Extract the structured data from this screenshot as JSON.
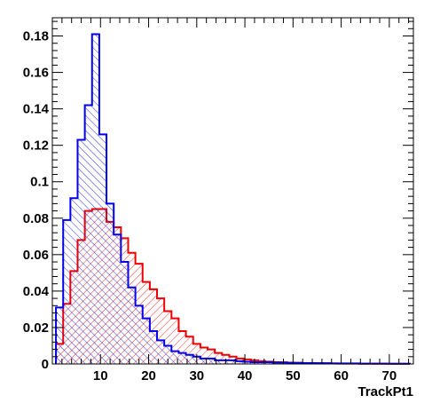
{
  "chart_data": {
    "type": "histogram",
    "title": "",
    "xlabel": "TrackPt1",
    "ylabel": "",
    "xlim": [
      0,
      75
    ],
    "ylim": [
      0,
      0.19
    ],
    "bin_width": 1.5,
    "x_start": 0.75,
    "x_ticks": [
      10,
      20,
      30,
      40,
      50,
      60,
      70
    ],
    "x_tick_labels": [
      "10",
      "20",
      "30",
      "40",
      "50",
      "60",
      "70"
    ],
    "y_ticks": [
      0,
      0.02,
      0.04,
      0.06,
      0.08,
      0.1,
      0.12,
      0.14,
      0.16,
      0.18
    ],
    "y_tick_labels": [
      "0",
      "0.02",
      "0.04",
      "0.06",
      "0.08",
      "0.1",
      "0.12",
      "0.14",
      "0.16",
      "0.18"
    ],
    "grid": false,
    "legend": "none",
    "series": [
      {
        "color": "#0000ee",
        "fill": "hatched",
        "values": [
          0.031,
          0.079,
          0.091,
          0.123,
          0.142,
          0.181,
          0.126,
          0.088,
          0.071,
          0.056,
          0.042,
          0.032,
          0.025,
          0.018,
          0.013,
          0.01,
          0.007,
          0.006,
          0.005,
          0.004,
          0.003,
          0.003,
          0.002,
          0.002,
          0.002,
          0.0015,
          0.0012,
          0.001,
          0.001,
          0.001,
          0.0008,
          0.0008,
          0.0006,
          0.0006,
          0.0005,
          0.0005,
          0.0004,
          0.0004,
          0.0003,
          0.0003,
          0.0003,
          0.0003,
          0.0002,
          0.0002,
          0.0002,
          0.0002,
          0.0001,
          0.0001,
          0.0001
        ]
      },
      {
        "color": "#ee0000",
        "fill": "hatched",
        "values": [
          0.011,
          0.033,
          0.051,
          0.068,
          0.084,
          0.085,
          0.085,
          0.078,
          0.075,
          0.069,
          0.061,
          0.055,
          0.045,
          0.041,
          0.036,
          0.029,
          0.025,
          0.018,
          0.015,
          0.011,
          0.009,
          0.008,
          0.006,
          0.005,
          0.004,
          0.003,
          0.0025,
          0.002,
          0.0016,
          0.0013,
          0.001,
          0.0009,
          0.0007,
          0.0006,
          0.0005,
          0.0004,
          0.0004,
          0.0003,
          0.0003,
          0.0002,
          0.0002,
          0.0002,
          0.0001,
          0.0001,
          0.0001,
          0.0001,
          0.0001,
          0.0001,
          0.0001
        ]
      }
    ]
  }
}
